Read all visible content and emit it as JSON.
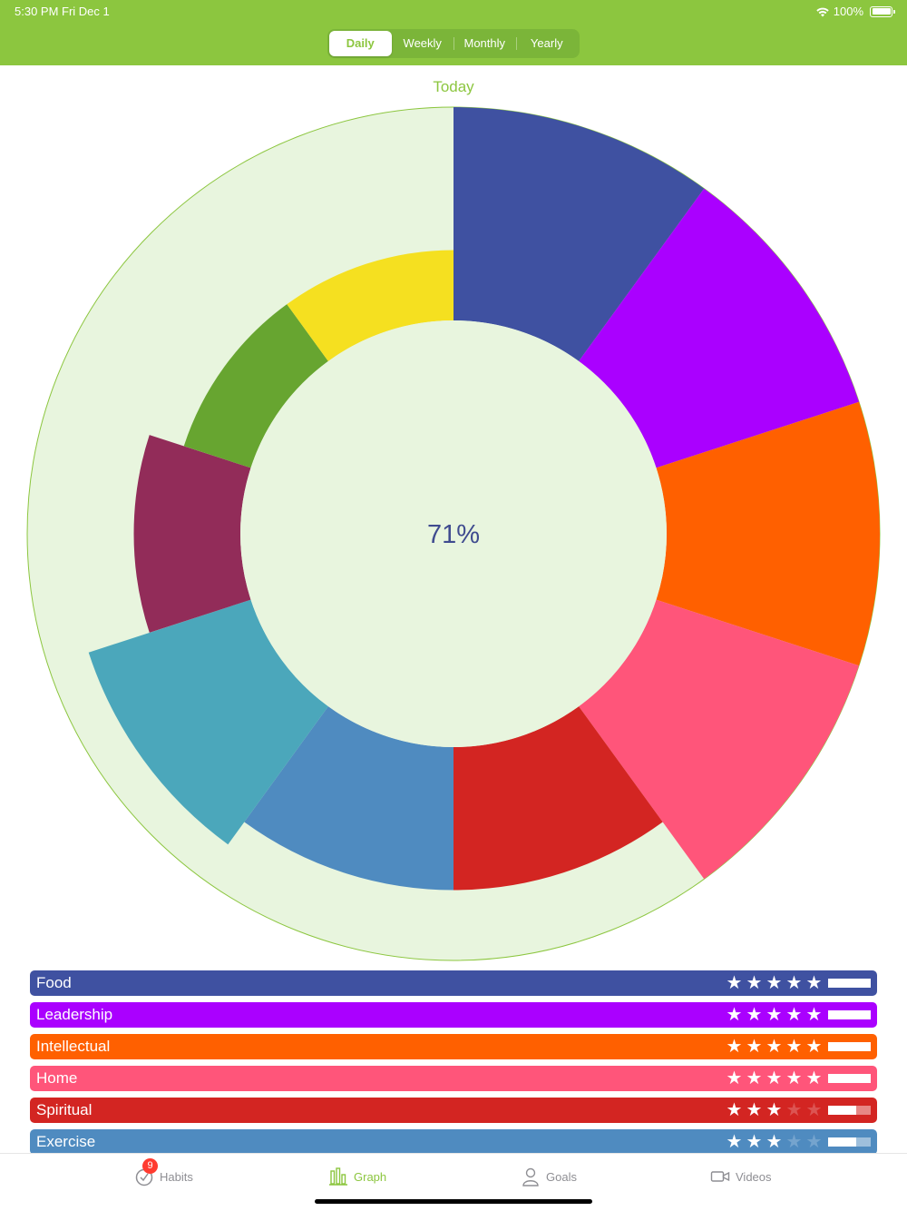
{
  "status_bar": {
    "time": "5:30 PM   Fri Dec 1",
    "battery": "100%"
  },
  "segments": [
    {
      "label": "Daily",
      "active": true
    },
    {
      "label": "Weekly",
      "active": false
    },
    {
      "label": "Monthly",
      "active": false
    },
    {
      "label": "Yearly",
      "active": false
    }
  ],
  "chart_title": "Today",
  "chart_data": {
    "type": "pie",
    "variant": "polar-area",
    "center_label": "71%",
    "max_value": 100,
    "track_color": "#e8f5de",
    "track_border_color": "#8cc63f",
    "center_color": "#e8f5de",
    "slices": [
      {
        "name": "Food",
        "value": 100,
        "color": "#3f51a1"
      },
      {
        "name": "Leadership",
        "value": 100,
        "color": "#aa00ff"
      },
      {
        "name": "Intellectual",
        "value": 100,
        "color": "#ff6000"
      },
      {
        "name": "Home",
        "value": 100,
        "color": "#ff557a"
      },
      {
        "name": "Spiritual",
        "value": 67,
        "color": "#d32522"
      },
      {
        "name": "Exercise",
        "value": 67,
        "color": "#4f8bc0"
      },
      {
        "name": "",
        "value": 80,
        "color": "#4ba7bb"
      },
      {
        "name": "",
        "value": 50,
        "color": "#922c59"
      },
      {
        "name": "",
        "value": 33,
        "color": "#67a530"
      },
      {
        "name": "",
        "value": 33,
        "color": "#f5e020"
      }
    ]
  },
  "categories": [
    {
      "label": "Food",
      "color": "#3f51a1",
      "stars": 5,
      "progress": 1.0
    },
    {
      "label": "Leadership",
      "color": "#aa00ff",
      "stars": 5,
      "progress": 1.0
    },
    {
      "label": "Intellectual",
      "color": "#ff6000",
      "stars": 5,
      "progress": 1.0
    },
    {
      "label": "Home",
      "color": "#ff557a",
      "stars": 5,
      "progress": 1.0
    },
    {
      "label": "Spiritual",
      "color": "#d32522",
      "stars": 3,
      "progress": 0.67
    },
    {
      "label": "Exercise",
      "color": "#4f8bc0",
      "stars": 3,
      "progress": 0.67
    }
  ],
  "tabbar": {
    "habits_label": "Habits",
    "habits_badge": "9",
    "graph_label": "Graph",
    "goals_label": "Goals",
    "videos_label": "Videos"
  },
  "colors": {
    "brand_green": "#8cc63f",
    "inactive_gray": "#8e8e93"
  }
}
